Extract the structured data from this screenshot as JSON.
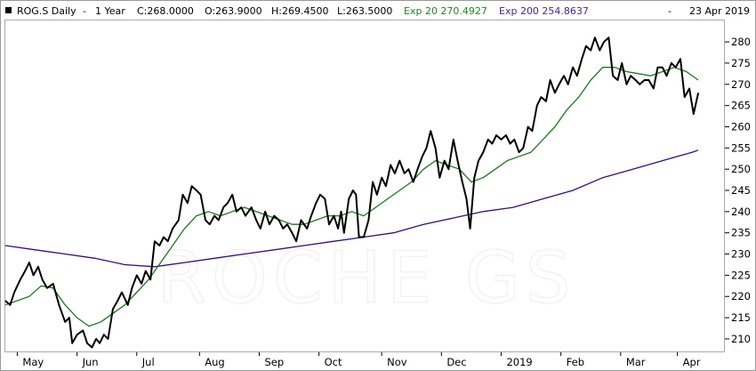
{
  "header": {
    "symbol": "ROG.S Daily",
    "dash1": "-",
    "period": "1 Year",
    "close": "C:268.0000",
    "open": "O:263.9000",
    "high": "H:269.4500",
    "low": "L:263.5000",
    "ema20_label": "Exp 20 270.4927",
    "ema200_label": "Exp 200 254.8637",
    "dash2": "-",
    "date": "23 Apr 2019"
  },
  "watermark": "ROCHE GS",
  "colors": {
    "price": "#000000",
    "ema20": "#1a7a1a",
    "ema200": "#3a0a82",
    "ema20_text": "#1a8a1a",
    "ema200_text": "#3a2a9a",
    "border": "#9a9a9a"
  },
  "chart_data": {
    "type": "line",
    "ylim": [
      206,
      284
    ],
    "xlim": [
      0,
      12
    ],
    "y_ticks": [
      280,
      275,
      270,
      265,
      260,
      255,
      250,
      245,
      240,
      235,
      230,
      225,
      220,
      215,
      210
    ],
    "x_ticks": [
      {
        "label": "May",
        "x": 0.2
      },
      {
        "label": "Jun",
        "x": 1.2
      },
      {
        "label": "Jul",
        "x": 2.2
      },
      {
        "label": "Aug",
        "x": 3.25
      },
      {
        "label": "Sep",
        "x": 4.25
      },
      {
        "label": "Oct",
        "x": 5.25
      },
      {
        "label": "Nov",
        "x": 6.3
      },
      {
        "label": "Dec",
        "x": 7.3
      },
      {
        "label": "2019",
        "x": 8.3
      },
      {
        "label": "Feb",
        "x": 9.3
      },
      {
        "label": "Mar",
        "x": 10.3
      },
      {
        "label": "Apr",
        "x": 11.25
      }
    ],
    "grid": false,
    "series": [
      {
        "name": "ROG.S Daily",
        "color": "#000000",
        "points": [
          [
            0,
            219
          ],
          [
            0.08,
            218
          ],
          [
            0.15,
            221
          ],
          [
            0.25,
            224
          ],
          [
            0.33,
            226
          ],
          [
            0.4,
            228
          ],
          [
            0.47,
            225
          ],
          [
            0.55,
            227
          ],
          [
            0.62,
            224
          ],
          [
            0.7,
            222
          ],
          [
            0.8,
            223
          ],
          [
            0.9,
            218
          ],
          [
            1.0,
            214
          ],
          [
            1.07,
            215
          ],
          [
            1.12,
            209
          ],
          [
            1.2,
            211
          ],
          [
            1.3,
            212
          ],
          [
            1.37,
            209
          ],
          [
            1.45,
            208
          ],
          [
            1.52,
            210
          ],
          [
            1.58,
            209
          ],
          [
            1.65,
            211
          ],
          [
            1.72,
            210
          ],
          [
            1.8,
            217
          ],
          [
            1.88,
            219
          ],
          [
            1.95,
            221
          ],
          [
            2.05,
            218
          ],
          [
            2.12,
            222
          ],
          [
            2.2,
            225
          ],
          [
            2.28,
            223
          ],
          [
            2.35,
            226
          ],
          [
            2.43,
            224
          ],
          [
            2.5,
            233
          ],
          [
            2.58,
            232
          ],
          [
            2.65,
            234
          ],
          [
            2.72,
            233
          ],
          [
            2.8,
            236
          ],
          [
            2.9,
            238
          ],
          [
            2.97,
            244
          ],
          [
            3.05,
            242
          ],
          [
            3.12,
            246
          ],
          [
            3.2,
            245
          ],
          [
            3.27,
            244
          ],
          [
            3.35,
            238
          ],
          [
            3.42,
            237
          ],
          [
            3.5,
            239
          ],
          [
            3.57,
            238
          ],
          [
            3.65,
            241
          ],
          [
            3.72,
            242
          ],
          [
            3.8,
            244
          ],
          [
            3.87,
            240
          ],
          [
            3.95,
            241
          ],
          [
            4.02,
            239
          ],
          [
            4.12,
            241
          ],
          [
            4.2,
            238
          ],
          [
            4.27,
            236
          ],
          [
            4.35,
            240
          ],
          [
            4.42,
            237
          ],
          [
            4.5,
            239
          ],
          [
            4.58,
            238
          ],
          [
            4.65,
            236
          ],
          [
            4.72,
            237
          ],
          [
            4.8,
            235
          ],
          [
            4.87,
            233
          ],
          [
            4.95,
            238
          ],
          [
            5.05,
            236
          ],
          [
            5.12,
            239
          ],
          [
            5.2,
            242
          ],
          [
            5.27,
            244
          ],
          [
            5.35,
            243
          ],
          [
            5.42,
            237
          ],
          [
            5.5,
            239
          ],
          [
            5.57,
            236
          ],
          [
            5.62,
            240
          ],
          [
            5.67,
            235
          ],
          [
            5.75,
            243
          ],
          [
            5.82,
            245
          ],
          [
            5.87,
            244
          ],
          [
            5.92,
            234
          ],
          [
            6.0,
            234
          ],
          [
            6.08,
            238
          ],
          [
            6.15,
            247
          ],
          [
            6.22,
            244
          ],
          [
            6.3,
            248
          ],
          [
            6.37,
            246
          ],
          [
            6.45,
            251
          ],
          [
            6.52,
            249
          ],
          [
            6.6,
            252
          ],
          [
            6.68,
            249
          ],
          [
            6.75,
            250
          ],
          [
            6.83,
            247
          ],
          [
            6.9,
            250
          ],
          [
            6.98,
            253
          ],
          [
            7.05,
            255
          ],
          [
            7.12,
            259
          ],
          [
            7.2,
            255
          ],
          [
            7.27,
            248
          ],
          [
            7.35,
            252
          ],
          [
            7.42,
            250
          ],
          [
            7.5,
            257
          ],
          [
            7.57,
            252
          ],
          [
            7.65,
            247
          ],
          [
            7.72,
            243
          ],
          [
            7.78,
            236
          ],
          [
            7.85,
            248
          ],
          [
            7.92,
            252
          ],
          [
            8.0,
            254
          ],
          [
            8.08,
            257
          ],
          [
            8.15,
            256
          ],
          [
            8.22,
            258
          ],
          [
            8.3,
            257
          ],
          [
            8.38,
            258
          ],
          [
            8.45,
            256
          ],
          [
            8.52,
            257
          ],
          [
            8.6,
            254
          ],
          [
            8.67,
            255
          ],
          [
            8.75,
            260
          ],
          [
            8.82,
            259
          ],
          [
            8.9,
            265
          ],
          [
            8.97,
            267
          ],
          [
            9.05,
            266
          ],
          [
            9.12,
            271
          ],
          [
            9.2,
            268
          ],
          [
            9.27,
            270
          ],
          [
            9.35,
            272
          ],
          [
            9.42,
            270
          ],
          [
            9.5,
            274
          ],
          [
            9.57,
            272
          ],
          [
            9.65,
            276
          ],
          [
            9.72,
            279
          ],
          [
            9.8,
            278
          ],
          [
            9.87,
            281
          ],
          [
            9.95,
            278
          ],
          [
            10.02,
            280
          ],
          [
            10.1,
            281
          ],
          [
            10.17,
            272
          ],
          [
            10.25,
            271
          ],
          [
            10.32,
            275
          ],
          [
            10.4,
            270
          ],
          [
            10.47,
            272
          ],
          [
            10.55,
            271
          ],
          [
            10.62,
            270
          ],
          [
            10.7,
            271
          ],
          [
            10.77,
            271
          ],
          [
            10.85,
            269
          ],
          [
            10.92,
            274
          ],
          [
            11.0,
            274
          ],
          [
            11.07,
            272
          ],
          [
            11.15,
            275
          ],
          [
            11.22,
            274
          ],
          [
            11.3,
            276
          ],
          [
            11.37,
            267
          ],
          [
            11.45,
            269
          ],
          [
            11.52,
            263
          ],
          [
            11.6,
            268
          ]
        ]
      },
      {
        "name": "Exp 20",
        "color": "#1a7a1a",
        "points": [
          [
            0,
            218
          ],
          [
            0.2,
            219
          ],
          [
            0.4,
            220
          ],
          [
            0.6,
            222.5
          ],
          [
            0.8,
            222
          ],
          [
            1.0,
            218
          ],
          [
            1.2,
            215
          ],
          [
            1.4,
            213
          ],
          [
            1.6,
            214
          ],
          [
            1.8,
            216
          ],
          [
            2.0,
            218
          ],
          [
            2.2,
            221
          ],
          [
            2.4,
            224
          ],
          [
            2.6,
            228
          ],
          [
            2.8,
            232
          ],
          [
            3.0,
            236
          ],
          [
            3.2,
            239
          ],
          [
            3.4,
            240
          ],
          [
            3.6,
            239
          ],
          [
            3.8,
            240
          ],
          [
            4.0,
            241
          ],
          [
            4.2,
            240
          ],
          [
            4.4,
            239
          ],
          [
            4.6,
            238
          ],
          [
            4.8,
            237
          ],
          [
            5.0,
            237
          ],
          [
            5.2,
            238
          ],
          [
            5.4,
            239
          ],
          [
            5.6,
            239
          ],
          [
            5.8,
            240
          ],
          [
            6.0,
            239
          ],
          [
            6.2,
            241
          ],
          [
            6.4,
            243
          ],
          [
            6.6,
            245
          ],
          [
            6.8,
            247
          ],
          [
            7.0,
            250
          ],
          [
            7.2,
            252
          ],
          [
            7.4,
            251
          ],
          [
            7.6,
            250
          ],
          [
            7.8,
            247
          ],
          [
            8.0,
            248
          ],
          [
            8.2,
            250
          ],
          [
            8.4,
            252
          ],
          [
            8.6,
            253
          ],
          [
            8.8,
            254
          ],
          [
            9.0,
            257
          ],
          [
            9.2,
            260
          ],
          [
            9.4,
            264
          ],
          [
            9.6,
            267
          ],
          [
            9.8,
            271
          ],
          [
            10.0,
            274
          ],
          [
            10.2,
            274
          ],
          [
            10.4,
            273
          ],
          [
            10.6,
            272.5
          ],
          [
            10.8,
            272
          ],
          [
            11.0,
            273
          ],
          [
            11.2,
            274
          ],
          [
            11.4,
            273
          ],
          [
            11.6,
            271
          ]
        ]
      },
      {
        "name": "Exp 200",
        "color": "#3a0a82",
        "points": [
          [
            0,
            232
          ],
          [
            0.5,
            231
          ],
          [
            1.0,
            230
          ],
          [
            1.5,
            229
          ],
          [
            2.0,
            227.5
          ],
          [
            2.5,
            227
          ],
          [
            3.0,
            228
          ],
          [
            3.5,
            229
          ],
          [
            4.0,
            230
          ],
          [
            4.5,
            231
          ],
          [
            5.0,
            232
          ],
          [
            5.5,
            233
          ],
          [
            6.0,
            234
          ],
          [
            6.5,
            235
          ],
          [
            7.0,
            237
          ],
          [
            7.5,
            238.5
          ],
          [
            8.0,
            240
          ],
          [
            8.5,
            241
          ],
          [
            9.0,
            243
          ],
          [
            9.5,
            245
          ],
          [
            10.0,
            248
          ],
          [
            10.5,
            250
          ],
          [
            11.0,
            252
          ],
          [
            11.5,
            254
          ],
          [
            11.6,
            254.5
          ]
        ]
      }
    ]
  }
}
